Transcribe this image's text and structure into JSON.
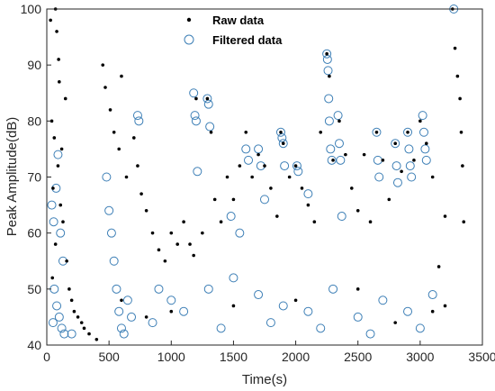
{
  "chart_data": {
    "type": "scatter",
    "xlabel": "Time(s)",
    "ylabel": "Peak Amplitude(dB)",
    "xlim": [
      0,
      3500
    ],
    "ylim": [
      40,
      100
    ],
    "xticks": [
      "0",
      "500",
      "1000",
      "1500",
      "2000",
      "2500",
      "3000",
      "3500"
    ],
    "yticks": [
      "40",
      "50",
      "60",
      "70",
      "80",
      "90",
      "100"
    ],
    "grid": false,
    "legend_position": "top",
    "series": [
      {
        "name": "Raw data",
        "marker": "dot",
        "color": "#000000",
        "points": [
          [
            30,
            98
          ],
          [
            70,
            100
          ],
          [
            80,
            96
          ],
          [
            95,
            91
          ],
          [
            100,
            87
          ],
          [
            150,
            84
          ],
          [
            40,
            80
          ],
          [
            60,
            77
          ],
          [
            120,
            75
          ],
          [
            90,
            72
          ],
          [
            50,
            68
          ],
          [
            110,
            65
          ],
          [
            130,
            62
          ],
          [
            70,
            58
          ],
          [
            160,
            55
          ],
          [
            45,
            52
          ],
          [
            180,
            50
          ],
          [
            200,
            48
          ],
          [
            220,
            46
          ],
          [
            250,
            45
          ],
          [
            280,
            44
          ],
          [
            300,
            43
          ],
          [
            340,
            42
          ],
          [
            400,
            41
          ],
          [
            450,
            90
          ],
          [
            470,
            86
          ],
          [
            510,
            82
          ],
          [
            540,
            78
          ],
          [
            580,
            75
          ],
          [
            600,
            88
          ],
          [
            640,
            70
          ],
          [
            700,
            77
          ],
          [
            730,
            72
          ],
          [
            760,
            67
          ],
          [
            800,
            64
          ],
          [
            850,
            60
          ],
          [
            900,
            57
          ],
          [
            950,
            55
          ],
          [
            1000,
            60
          ],
          [
            1050,
            58
          ],
          [
            1100,
            62
          ],
          [
            1150,
            58
          ],
          [
            1180,
            56
          ],
          [
            1200,
            84
          ],
          [
            1250,
            60
          ],
          [
            1290,
            84
          ],
          [
            1320,
            78
          ],
          [
            1350,
            66
          ],
          [
            1400,
            62
          ],
          [
            1450,
            70
          ],
          [
            1500,
            66
          ],
          [
            1550,
            72
          ],
          [
            1600,
            78
          ],
          [
            1650,
            70
          ],
          [
            1700,
            74
          ],
          [
            1750,
            72
          ],
          [
            1800,
            68
          ],
          [
            1850,
            63
          ],
          [
            1880,
            78
          ],
          [
            1900,
            76
          ],
          [
            1950,
            70
          ],
          [
            2000,
            72
          ],
          [
            2050,
            68
          ],
          [
            2100,
            65
          ],
          [
            2150,
            62
          ],
          [
            2200,
            78
          ],
          [
            2250,
            92
          ],
          [
            2270,
            88
          ],
          [
            2300,
            73
          ],
          [
            2350,
            80
          ],
          [
            2400,
            74
          ],
          [
            2450,
            68
          ],
          [
            2500,
            64
          ],
          [
            2550,
            74
          ],
          [
            2600,
            62
          ],
          [
            2650,
            78
          ],
          [
            2700,
            73
          ],
          [
            2750,
            66
          ],
          [
            2800,
            76
          ],
          [
            2850,
            71
          ],
          [
            2900,
            78
          ],
          [
            2950,
            73
          ],
          [
            3000,
            80
          ],
          [
            3050,
            76
          ],
          [
            3100,
            70
          ],
          [
            3150,
            54
          ],
          [
            3200,
            63
          ],
          [
            3260,
            100
          ],
          [
            3280,
            93
          ],
          [
            3300,
            88
          ],
          [
            3320,
            84
          ],
          [
            3330,
            78
          ],
          [
            3340,
            72
          ],
          [
            3350,
            62
          ],
          [
            2500,
            50
          ],
          [
            2000,
            48
          ],
          [
            1500,
            47
          ],
          [
            1000,
            46
          ],
          [
            800,
            45
          ],
          [
            2800,
            44
          ],
          [
            3100,
            46
          ],
          [
            3200,
            47
          ],
          [
            600,
            48
          ]
        ]
      },
      {
        "name": "Filtered data",
        "marker": "open-circle",
        "color": "#3d7fb6",
        "points": [
          [
            40,
            65
          ],
          [
            55,
            62
          ],
          [
            75,
            68
          ],
          [
            90,
            74
          ],
          [
            110,
            60
          ],
          [
            130,
            55
          ],
          [
            60,
            50
          ],
          [
            80,
            47
          ],
          [
            100,
            45
          ],
          [
            120,
            43
          ],
          [
            140,
            42
          ],
          [
            50,
            44
          ],
          [
            480,
            70
          ],
          [
            500,
            64
          ],
          [
            520,
            60
          ],
          [
            540,
            55
          ],
          [
            560,
            50
          ],
          [
            580,
            46
          ],
          [
            600,
            43
          ],
          [
            620,
            42
          ],
          [
            650,
            48
          ],
          [
            680,
            45
          ],
          [
            730,
            81
          ],
          [
            740,
            80
          ],
          [
            1180,
            85
          ],
          [
            1190,
            81
          ],
          [
            1200,
            80
          ],
          [
            1210,
            71
          ],
          [
            1290,
            84
          ],
          [
            1300,
            83
          ],
          [
            1310,
            79
          ],
          [
            1480,
            63
          ],
          [
            1550,
            60
          ],
          [
            1600,
            75
          ],
          [
            1620,
            73
          ],
          [
            1700,
            75
          ],
          [
            1720,
            72
          ],
          [
            1750,
            66
          ],
          [
            1880,
            78
          ],
          [
            1890,
            77
          ],
          [
            1900,
            76
          ],
          [
            1910,
            72
          ],
          [
            2010,
            72
          ],
          [
            2020,
            71
          ],
          [
            2100,
            67
          ],
          [
            2250,
            92
          ],
          [
            2255,
            91
          ],
          [
            2260,
            89
          ],
          [
            2265,
            84
          ],
          [
            2270,
            80
          ],
          [
            2280,
            75
          ],
          [
            2290,
            73
          ],
          [
            2340,
            81
          ],
          [
            2350,
            76
          ],
          [
            2360,
            73
          ],
          [
            2370,
            63
          ],
          [
            2650,
            78
          ],
          [
            2660,
            73
          ],
          [
            2670,
            70
          ],
          [
            2800,
            76
          ],
          [
            2810,
            72
          ],
          [
            2820,
            69
          ],
          [
            2900,
            78
          ],
          [
            2910,
            75
          ],
          [
            2920,
            72
          ],
          [
            2930,
            70
          ],
          [
            3020,
            81
          ],
          [
            3030,
            78
          ],
          [
            3040,
            75
          ],
          [
            3050,
            73
          ],
          [
            3270,
            100
          ],
          [
            900,
            50
          ],
          [
            1000,
            48
          ],
          [
            1100,
            46
          ],
          [
            1300,
            50
          ],
          [
            1500,
            52
          ],
          [
            1700,
            49
          ],
          [
            1900,
            47
          ],
          [
            2100,
            46
          ],
          [
            2300,
            50
          ],
          [
            2500,
            45
          ],
          [
            2700,
            48
          ],
          [
            2900,
            46
          ],
          [
            3100,
            49
          ],
          [
            200,
            42
          ],
          [
            850,
            44
          ],
          [
            1400,
            43
          ],
          [
            1800,
            44
          ],
          [
            2200,
            43
          ],
          [
            2600,
            42
          ],
          [
            3000,
            43
          ]
        ]
      }
    ]
  }
}
